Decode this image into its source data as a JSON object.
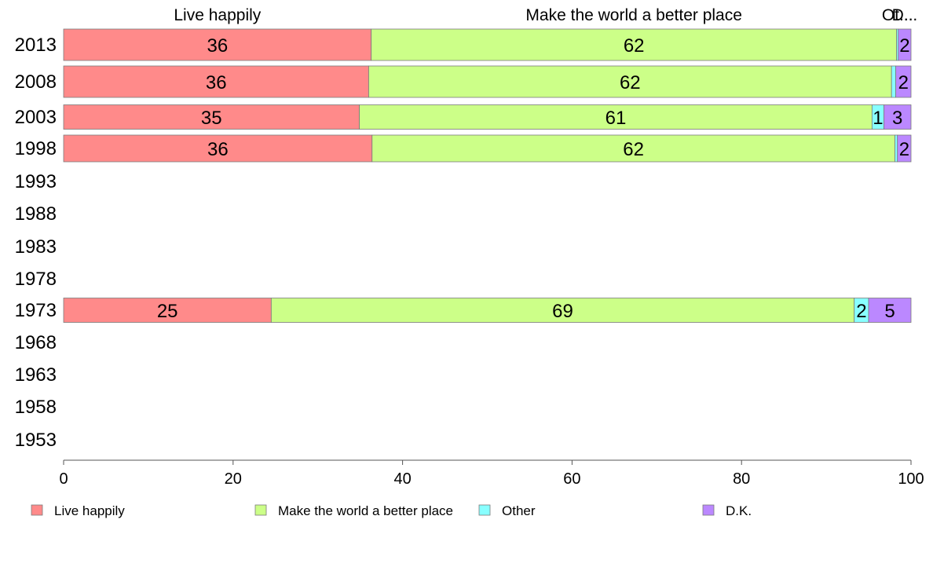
{
  "chart_data": {
    "type": "bar",
    "orientation": "horizontal",
    "stacked": true,
    "categories": [
      "2013",
      "2008",
      "2003",
      "1998",
      "1993",
      "1988",
      "1983",
      "1978",
      "1973",
      "1968",
      "1963",
      "1958",
      "1953"
    ],
    "series": [
      {
        "name": "Live happily",
        "color": "#ff8a8a",
        "values": [
          36.3,
          36.0,
          34.9,
          36.4,
          null,
          null,
          null,
          null,
          24.5,
          null,
          null,
          null,
          null
        ],
        "labels": [
          "36",
          "36",
          "35",
          "36",
          "",
          "",
          "",
          "",
          "25",
          "",
          "",
          "",
          ""
        ]
      },
      {
        "name": "Make the world a better place",
        "color": "#ccff88",
        "values": [
          62.0,
          61.7,
          60.5,
          61.7,
          null,
          null,
          null,
          null,
          68.8,
          null,
          null,
          null,
          null
        ],
        "labels": [
          "62",
          "62",
          "61",
          "62",
          "",
          "",
          "",
          "",
          "69",
          "",
          "",
          "",
          ""
        ]
      },
      {
        "name": "Other",
        "color": "#88ffff",
        "values": [
          0.2,
          0.5,
          1.4,
          0.3,
          null,
          null,
          null,
          null,
          1.7,
          null,
          null,
          null,
          null
        ],
        "labels": [
          "",
          "",
          "1",
          "",
          "",
          "",
          "",
          "",
          "2",
          "",
          "",
          "",
          ""
        ]
      },
      {
        "name": "D.K.",
        "color": "#bb88ff",
        "values": [
          1.5,
          1.8,
          3.2,
          1.6,
          null,
          null,
          null,
          null,
          5.0,
          null,
          null,
          null,
          null
        ],
        "labels": [
          "2",
          "2",
          "3",
          "2",
          "",
          "",
          "",
          "",
          "5",
          "",
          "",
          "",
          ""
        ]
      }
    ],
    "top_labels": [
      "Live happily",
      "Make the world a better place",
      "Ot...",
      "D..."
    ],
    "xlim": [
      0,
      100
    ],
    "xticks": [
      "0",
      "20",
      "40",
      "60",
      "80",
      "100"
    ],
    "grid": false,
    "legend_position": "bottom"
  }
}
